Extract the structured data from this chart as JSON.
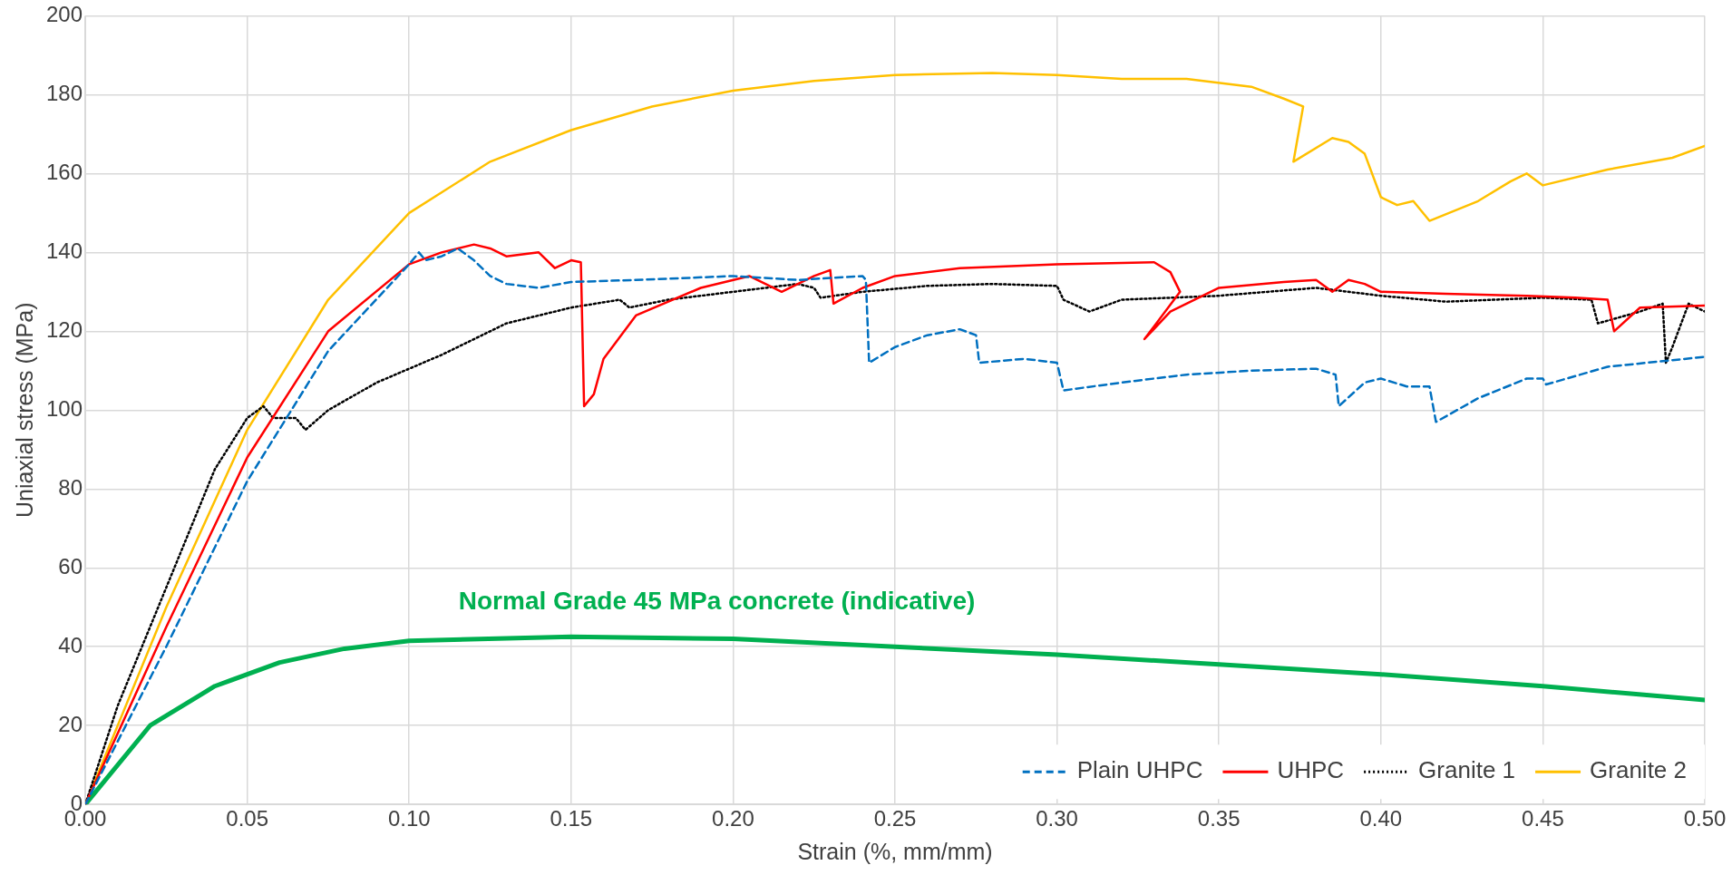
{
  "chart_data": {
    "type": "line",
    "xlabel": "Strain (%, mm/mm)",
    "ylabel": "Uniaxial stress (MPa)",
    "xlim": [
      0,
      0.5
    ],
    "ylim": [
      0,
      200
    ],
    "xticks": [
      {
        "value": 0,
        "label": "0.00"
      },
      {
        "value": 0.05,
        "label": "0.05"
      },
      {
        "value": 0.1,
        "label": "0.10"
      },
      {
        "value": 0.15,
        "label": "0.15"
      },
      {
        "value": 0.2,
        "label": "0.20"
      },
      {
        "value": 0.25,
        "label": "0.25"
      },
      {
        "value": 0.3,
        "label": "0.30"
      },
      {
        "value": 0.35,
        "label": "0.35"
      },
      {
        "value": 0.4,
        "label": "0.40"
      },
      {
        "value": 0.45,
        "label": "0.45"
      },
      {
        "value": 0.5,
        "label": "0.50"
      }
    ],
    "yticks": [
      0,
      20,
      40,
      60,
      80,
      100,
      120,
      140,
      160,
      180,
      200
    ],
    "grid": true,
    "legend": "bottom right",
    "marker": "none",
    "annotations": [
      "Normal Grade 45 MPa concrete (indicative)"
    ],
    "series": [
      {
        "name": "Plain UHPC",
        "color": "#0070c0",
        "line_style": "dashed",
        "x": [
          0,
          0.025,
          0.05,
          0.075,
          0.1,
          0.103,
          0.105,
          0.11,
          0.115,
          0.12,
          0.125,
          0.13,
          0.14,
          0.15,
          0.17,
          0.2,
          0.22,
          0.24,
          0.241,
          0.242,
          0.25,
          0.26,
          0.27,
          0.275,
          0.276,
          0.29,
          0.3,
          0.302,
          0.32,
          0.34,
          0.36,
          0.38,
          0.386,
          0.387,
          0.395,
          0.4,
          0.408,
          0.415,
          0.417,
          0.43,
          0.445,
          0.45,
          0.451,
          0.47,
          0.5
        ],
        "values": [
          0,
          40,
          82,
          115,
          137,
          140,
          138,
          139,
          141,
          138,
          134,
          132,
          131,
          132.5,
          133,
          134,
          133,
          134,
          133,
          112,
          116,
          119,
          120.5,
          119,
          112,
          113,
          112,
          105,
          107,
          109,
          110,
          110.5,
          109,
          101,
          107,
          108,
          106,
          106,
          97,
          103,
          108,
          108,
          106.5,
          111,
          113.5
        ]
      },
      {
        "name": "UHPC",
        "color": "#ff0000",
        "line_style": "solid",
        "x": [
          0,
          0.025,
          0.05,
          0.075,
          0.1,
          0.11,
          0.12,
          0.125,
          0.13,
          0.14,
          0.145,
          0.15,
          0.153,
          0.154,
          0.157,
          0.16,
          0.17,
          0.19,
          0.205,
          0.21,
          0.215,
          0.225,
          0.23,
          0.231,
          0.24,
          0.25,
          0.27,
          0.3,
          0.33,
          0.335,
          0.338,
          0.327,
          0.335,
          0.35,
          0.37,
          0.38,
          0.385,
          0.39,
          0.395,
          0.4,
          0.42,
          0.445,
          0.46,
          0.47,
          0.472,
          0.48,
          0.5
        ],
        "values": [
          0,
          45,
          88,
          120,
          137,
          140,
          142,
          141,
          139,
          140,
          136,
          138,
          137.5,
          101,
          104,
          113,
          124,
          131,
          134,
          132,
          130,
          134,
          135.5,
          127,
          131,
          134,
          136,
          137,
          137.5,
          135,
          130,
          118,
          125,
          131,
          132.5,
          133,
          130,
          133,
          132,
          130,
          129.5,
          129,
          128.5,
          128,
          120,
          126,
          126.5
        ]
      },
      {
        "name": "Granite 1",
        "color": "#000000",
        "line_style": "dotted",
        "x": [
          0,
          0.01,
          0.025,
          0.04,
          0.05,
          0.055,
          0.058,
          0.065,
          0.068,
          0.075,
          0.09,
          0.11,
          0.13,
          0.15,
          0.165,
          0.168,
          0.18,
          0.2,
          0.22,
          0.225,
          0.227,
          0.24,
          0.26,
          0.28,
          0.3,
          0.302,
          0.31,
          0.32,
          0.35,
          0.38,
          0.4,
          0.42,
          0.45,
          0.465,
          0.467,
          0.48,
          0.487,
          0.488,
          0.49,
          0.495,
          0.5
        ],
        "values": [
          0,
          25,
          55,
          85,
          98,
          101,
          98,
          98,
          95,
          100,
          107,
          114,
          122,
          126,
          128,
          126,
          128,
          130,
          132,
          131,
          128.5,
          130,
          131.5,
          132,
          131.5,
          128,
          125,
          128,
          129,
          131,
          129,
          127.5,
          128.5,
          128,
          122,
          125,
          127,
          112,
          116,
          127,
          125
        ]
      },
      {
        "name": "Granite 2",
        "color": "#ffc000",
        "line_style": "solid",
        "x": [
          0,
          0.025,
          0.05,
          0.075,
          0.1,
          0.125,
          0.15,
          0.175,
          0.2,
          0.225,
          0.25,
          0.28,
          0.3,
          0.32,
          0.34,
          0.36,
          0.37,
          0.376,
          0.373,
          0.385,
          0.39,
          0.395,
          0.4,
          0.405,
          0.41,
          0.415,
          0.43,
          0.44,
          0.445,
          0.45,
          0.47,
          0.49,
          0.5
        ],
        "values": [
          0,
          50,
          95,
          128,
          150,
          163,
          171,
          177,
          181,
          183.5,
          185,
          185.5,
          185,
          184,
          184,
          182,
          179,
          177,
          163,
          169,
          168,
          165,
          154,
          152,
          153,
          148,
          153,
          158,
          160,
          157,
          161,
          164,
          167
        ]
      },
      {
        "color": "#00b050",
        "line_style": "solid",
        "x": [
          0,
          0.02,
          0.04,
          0.06,
          0.08,
          0.1,
          0.15,
          0.2,
          0.25,
          0.3,
          0.35,
          0.4,
          0.45,
          0.5
        ],
        "values": [
          0,
          20,
          30,
          36,
          39.5,
          41.5,
          42.5,
          42,
          40,
          38,
          35.5,
          33,
          30,
          26.5
        ]
      }
    ]
  }
}
